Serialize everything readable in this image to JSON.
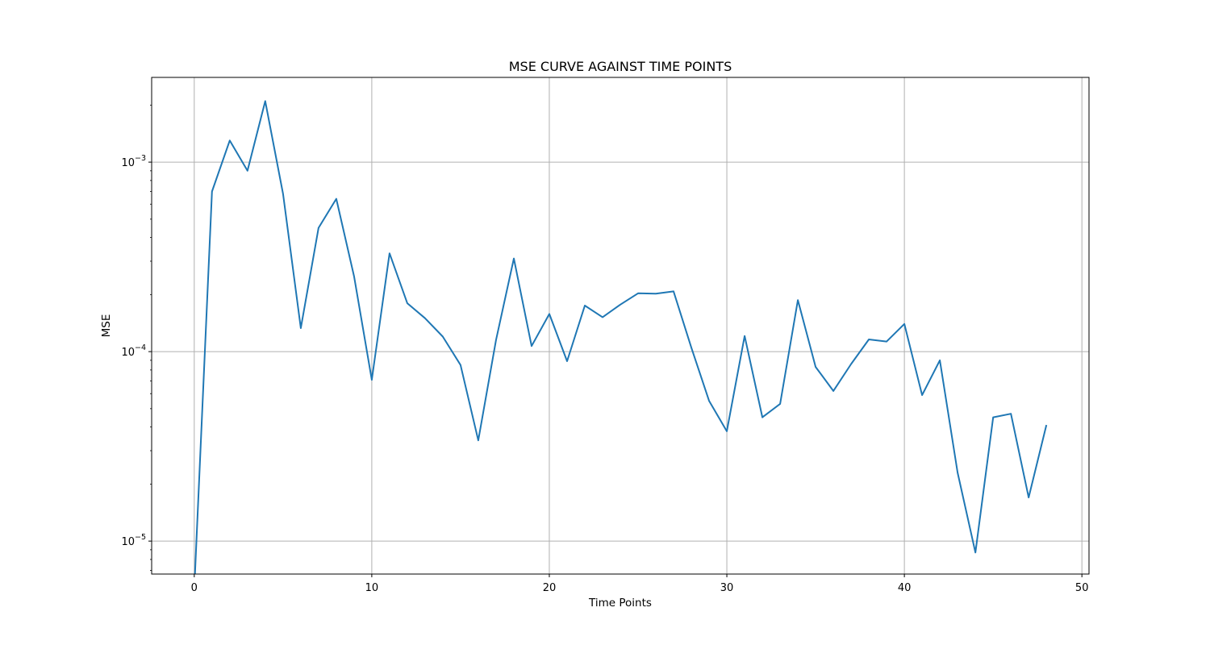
{
  "chart_data": {
    "type": "line",
    "title": "MSE CURVE AGAINST TIME POINTS",
    "xlabel": "Time Points",
    "ylabel": "MSE",
    "xlim": [
      -2.4,
      50.4
    ],
    "ylim": [
      6.7e-06,
      0.0028
    ],
    "yscale": "log",
    "grid": true,
    "x_ticks": [
      0,
      10,
      20,
      30,
      40,
      50
    ],
    "x_tick_labels": [
      "0",
      "10",
      "20",
      "30",
      "40",
      "50"
    ],
    "y_ticks": [
      1e-05,
      0.0001,
      0.001
    ],
    "y_tick_labels": [
      {
        "base": "10",
        "exp": "−5"
      },
      {
        "base": "10",
        "exp": "−4"
      },
      {
        "base": "10",
        "exp": "−3"
      }
    ],
    "series": [
      {
        "color": "#1f77b4",
        "x": [
          0,
          1,
          2,
          3,
          4,
          5,
          6,
          7,
          8,
          9,
          10,
          11,
          12,
          13,
          14,
          15,
          16,
          17,
          18,
          19,
          20,
          21,
          22,
          23,
          24,
          25,
          26,
          27,
          28,
          29,
          30,
          31,
          32,
          33,
          34,
          35,
          36,
          37,
          38,
          39,
          40,
          41,
          42,
          43,
          44,
          45,
          46,
          47,
          48
        ],
        "values": [
          0,
          0.0007,
          0.0013,
          0.0009,
          0.0021,
          0.00068,
          0.000133,
          0.00045,
          0.00064,
          0.00025,
          7.1e-05,
          0.00033,
          0.00018,
          0.00015,
          0.00012,
          8.5e-05,
          3.4e-05,
          0.000115,
          0.00031,
          0.000107,
          0.000158,
          8.9e-05,
          0.000175,
          0.000152,
          0.000177,
          0.000203,
          0.000202,
          0.000208,
          0.000105,
          5.5e-05,
          3.8e-05,
          0.000121,
          4.5e-05,
          5.3e-05,
          0.000187,
          8.3e-05,
          6.2e-05,
          8.6e-05,
          0.000116,
          0.000113,
          0.00014,
          5.9e-05,
          9e-05,
          2.3e-05,
          8.7e-06,
          4.5e-05,
          4.7e-05,
          1.7e-05,
          4.1e-05
        ]
      }
    ]
  }
}
